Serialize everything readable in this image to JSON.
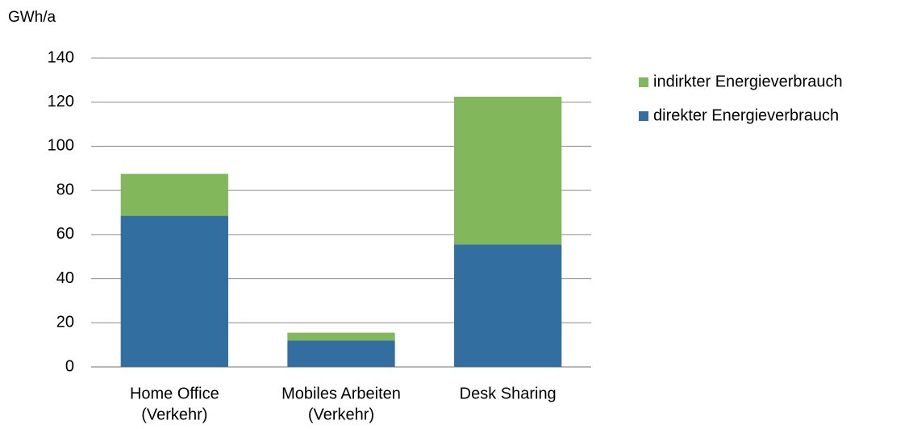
{
  "chart_data": {
    "type": "stacked_bar",
    "y_label": "GWh/a",
    "categories": [
      [
        "Home Office",
        "(Verkehr)"
      ],
      [
        "Mobiles Arbeiten",
        "(Verkehr)"
      ],
      [
        "Desk Sharing"
      ]
    ],
    "series": [
      {
        "name": "direkter Energieverbrauch",
        "color": "#336ea1",
        "values": [
          68.5,
          12,
          55.5
        ]
      },
      {
        "name": "indirkter Energieverbrauch",
        "color": "#82b75c",
        "values": [
          19,
          3.5,
          67
        ]
      }
    ],
    "ylim": [
      0,
      140
    ],
    "yticks": [
      0,
      20,
      40,
      60,
      80,
      100,
      120,
      140
    ],
    "grid": true,
    "legend": "right"
  }
}
